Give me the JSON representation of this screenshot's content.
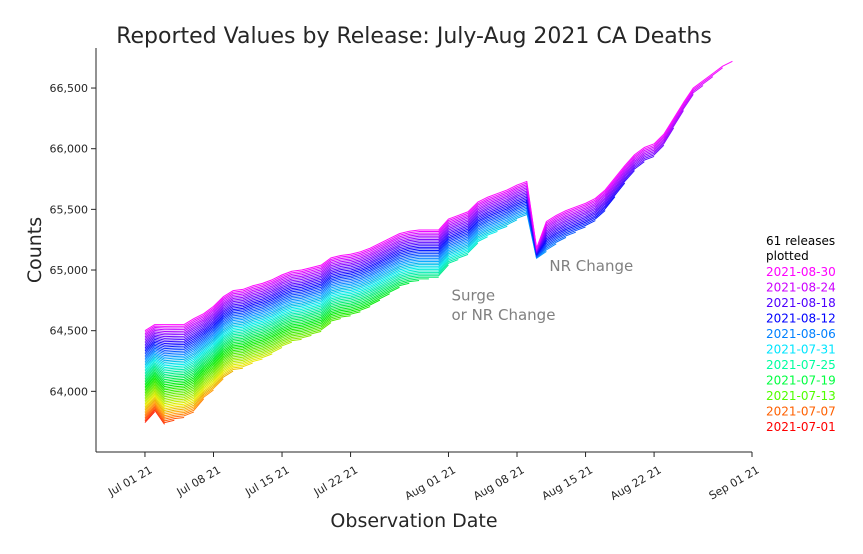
{
  "chart_data": {
    "type": "line",
    "title": "Reported Values by Release: July-Aug 2021 CA Deaths",
    "xlabel": "Observation Date",
    "ylabel": "Counts",
    "x_range": [
      "2021-06-26",
      "2021-09-01"
    ],
    "ylim": [
      63500,
      66830
    ],
    "grid": false,
    "x_ticks": [
      {
        "date": "2021-07-01",
        "label": "Jul 01 21"
      },
      {
        "date": "2021-07-08",
        "label": "Jul 08 21"
      },
      {
        "date": "2021-07-15",
        "label": "Jul 15 21"
      },
      {
        "date": "2021-07-22",
        "label": "Jul 22 21"
      },
      {
        "date": "2021-08-01",
        "label": "Aug 01 21"
      },
      {
        "date": "2021-08-08",
        "label": "Aug 08 21"
      },
      {
        "date": "2021-08-15",
        "label": "Aug 15 21"
      },
      {
        "date": "2021-08-22",
        "label": "Aug 22 21"
      },
      {
        "date": "2021-09-01",
        "label": "Sep 01 21"
      }
    ],
    "y_ticks": [
      {
        "value": 64000,
        "label": "64,000"
      },
      {
        "value": 64500,
        "label": "64,500"
      },
      {
        "value": 65000,
        "label": "65,000"
      },
      {
        "value": 65500,
        "label": "65,500"
      },
      {
        "value": 66000,
        "label": "66,000"
      },
      {
        "value": 66500,
        "label": "66,500"
      }
    ],
    "release_count": 61,
    "first_release": "2021-07-01",
    "last_release": "2021-08-30",
    "color_start": "#ff0000",
    "color_end": "#ff00ff",
    "final_release_values": {
      "x": [
        "2021-07-01",
        "2021-07-02",
        "2021-07-03",
        "2021-07-04",
        "2021-07-05",
        "2021-07-06",
        "2021-07-07",
        "2021-07-08",
        "2021-07-09",
        "2021-07-10",
        "2021-07-11",
        "2021-07-12",
        "2021-07-13",
        "2021-07-14",
        "2021-07-15",
        "2021-07-16",
        "2021-07-17",
        "2021-07-18",
        "2021-07-19",
        "2021-07-20",
        "2021-07-21",
        "2021-07-22",
        "2021-07-23",
        "2021-07-24",
        "2021-07-25",
        "2021-07-26",
        "2021-07-27",
        "2021-07-28",
        "2021-07-29",
        "2021-07-30",
        "2021-07-31",
        "2021-08-01",
        "2021-08-02",
        "2021-08-03",
        "2021-08-04",
        "2021-08-05",
        "2021-08-06",
        "2021-08-07",
        "2021-08-08",
        "2021-08-09",
        "2021-08-10",
        "2021-08-11",
        "2021-08-12",
        "2021-08-13",
        "2021-08-14",
        "2021-08-15",
        "2021-08-16",
        "2021-08-17",
        "2021-08-18",
        "2021-08-19",
        "2021-08-20",
        "2021-08-21",
        "2021-08-22",
        "2021-08-23",
        "2021-08-24",
        "2021-08-25",
        "2021-08-26",
        "2021-08-27",
        "2021-08-28",
        "2021-08-29",
        "2021-08-30"
      ],
      "y": [
        64500,
        64550,
        64550,
        64550,
        64550,
        64600,
        64640,
        64700,
        64780,
        64830,
        64840,
        64870,
        64890,
        64920,
        64960,
        64990,
        65000,
        65020,
        65040,
        65100,
        65120,
        65130,
        65150,
        65180,
        65220,
        65260,
        65300,
        65320,
        65330,
        65330,
        65330,
        65420,
        65450,
        65480,
        65560,
        65600,
        65630,
        65660,
        65700,
        65730,
        65180,
        65400,
        65450,
        65490,
        65520,
        65550,
        65590,
        65660,
        65760,
        65860,
        65950,
        66010,
        66040,
        66120,
        66250,
        66380,
        66500,
        66560,
        66620,
        66680,
        66720
      ]
    },
    "first_release_values": {
      "x": [
        "2021-07-01",
        "2021-07-02",
        "2021-07-03",
        "2021-07-04",
        "2021-07-05",
        "2021-07-06"
      ],
      "y": [
        63730,
        63820,
        63700,
        63720,
        63730,
        63760
      ]
    },
    "annotations": [
      {
        "text": "NR Change",
        "x": "2021-08-11",
        "y": 64990
      },
      {
        "text": "Surge",
        "x": "2021-08-01",
        "y": 64750
      },
      {
        "text": "or NR Change",
        "x": "2021-08-01",
        "y": 64590
      }
    ],
    "legend": {
      "title_line1": "61 releases",
      "title_line2": "plotted",
      "placement": "right",
      "entries": [
        {
          "label": "2021-08-30",
          "color": "#ff00ff"
        },
        {
          "label": "2021-08-24",
          "color": "#cc00ff"
        },
        {
          "label": "2021-08-18",
          "color": "#5000ff"
        },
        {
          "label": "2021-08-12",
          "color": "#0000ff"
        },
        {
          "label": "2021-08-06",
          "color": "#0080ff"
        },
        {
          "label": "2021-07-31",
          "color": "#00e5ff"
        },
        {
          "label": "2021-07-25",
          "color": "#00ffa0"
        },
        {
          "label": "2021-07-19",
          "color": "#00ff40"
        },
        {
          "label": "2021-07-13",
          "color": "#50ff00"
        },
        {
          "label": "2021-07-07",
          "color": "#ff6000"
        },
        {
          "label": "2021-07-01",
          "color": "#ff0000"
        }
      ]
    }
  }
}
